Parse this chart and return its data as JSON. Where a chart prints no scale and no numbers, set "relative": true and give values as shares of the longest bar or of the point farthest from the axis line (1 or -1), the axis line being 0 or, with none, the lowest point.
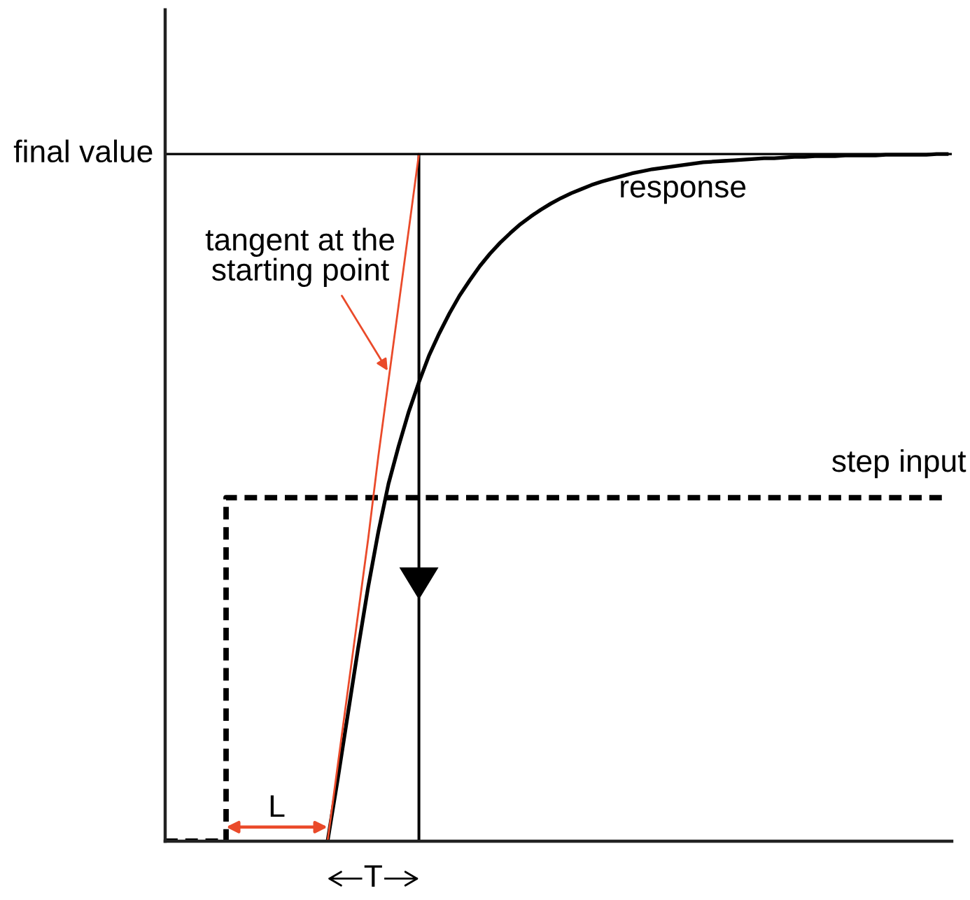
{
  "chart_data": {
    "type": "line",
    "relative": true,
    "tick_labels": false,
    "categories": [
      null,
      null,
      null,
      null,
      null,
      null,
      null,
      null,
      null,
      null,
      null,
      null,
      null,
      null,
      null,
      null,
      null,
      null,
      null,
      null,
      null,
      null,
      null,
      null,
      null,
      null,
      null,
      null,
      null,
      null,
      null,
      null,
      null,
      null,
      null,
      null,
      null,
      null,
      null,
      null,
      null,
      null,
      null,
      null,
      null,
      null,
      null,
      null,
      null,
      null,
      null,
      null,
      null,
      null,
      null,
      null,
      null,
      null,
      null,
      null,
      null,
      null,
      null,
      null,
      null,
      null,
      null,
      null,
      null,
      null,
      null,
      null,
      null,
      null,
      null,
      null,
      null,
      null
    ],
    "series": [
      {
        "name": "response",
        "color": "#000000",
        "values": [
          null,
          null,
          null,
          null,
          null,
          null,
          null,
          null,
          null,
          null,
          null,
          null,
          null,
          null,
          null,
          null,
          0,
          0.09,
          0.185,
          0.28,
          0.37,
          0.45,
          0.52,
          0.575,
          0.625,
          0.668,
          0.707,
          0.739,
          0.768,
          0.794,
          0.816,
          0.837,
          0.855,
          0.871,
          0.885,
          0.898,
          0.909,
          0.919,
          0.928,
          0.936,
          0.943,
          0.949,
          0.955,
          0.96,
          0.964,
          0.968,
          0.972,
          0.975,
          0.978,
          0.98,
          0.982,
          0.984,
          0.986,
          0.988,
          0.989,
          0.99,
          0.991,
          0.992,
          0.993,
          0.994,
          0.994,
          0.995,
          0.996,
          0.996,
          0.997,
          0.997,
          0.997,
          0.998,
          0.998,
          0.998,
          0.998,
          0.999,
          0.999,
          0.999,
          0.999,
          0.999,
          1,
          1
        ]
      },
      {
        "name": "step input",
        "type": "step",
        "line_style": "dashed",
        "color": "#000000",
        "values": [
          0,
          0,
          0,
          0,
          0,
          0,
          0.5,
          0.5,
          0.5,
          0.5,
          0.5,
          0.5,
          0.5,
          0.5,
          0.5,
          0.5,
          0.5,
          0.5,
          0.5,
          0.5,
          0.5,
          0.5,
          0.5,
          0.5,
          0.5,
          0.5,
          0.5,
          0.5,
          0.5,
          0.5,
          0.5,
          0.5,
          0.5,
          0.5,
          0.5,
          0.5,
          0.5,
          0.5,
          0.5,
          0.5,
          0.5,
          0.5,
          0.5,
          0.5,
          0.5,
          0.5,
          0.5,
          0.5,
          0.5,
          0.5,
          0.5,
          0.5,
          0.5,
          0.5,
          0.5,
          0.5,
          0.5,
          0.5,
          0.5,
          0.5,
          0.5,
          0.5,
          0.5,
          0.5,
          0.5,
          0.5,
          0.5,
          0.5,
          0.5,
          0.5,
          0.5,
          0.5,
          0.5,
          0.5,
          0.5,
          0.5,
          0.5,
          0.5
        ]
      },
      {
        "name": "tangent at the starting point",
        "color": "#ea4a2a",
        "values": [
          null,
          null,
          null,
          null,
          null,
          null,
          null,
          null,
          null,
          null,
          null,
          null,
          null,
          null,
          null,
          null,
          0,
          0.11,
          0.22,
          0.33,
          0.44,
          0.56,
          0.67,
          0.78,
          0.89,
          1,
          null,
          null,
          null,
          null,
          null,
          null,
          null,
          null,
          null,
          null,
          null,
          null,
          null,
          null,
          null,
          null,
          null,
          null,
          null,
          null,
          null,
          null,
          null,
          null,
          null,
          null,
          null,
          null,
          null,
          null,
          null,
          null,
          null,
          null,
          null,
          null,
          null,
          null,
          null,
          null,
          null,
          null,
          null,
          null,
          null,
          null,
          null,
          null,
          null,
          null,
          null,
          null
        ]
      }
    ],
    "ref_lines": [
      {
        "axis": "y",
        "value": 1,
        "label": "final value",
        "color": "#000000"
      }
    ],
    "annotations": [
      "L",
      "T"
    ]
  }
}
